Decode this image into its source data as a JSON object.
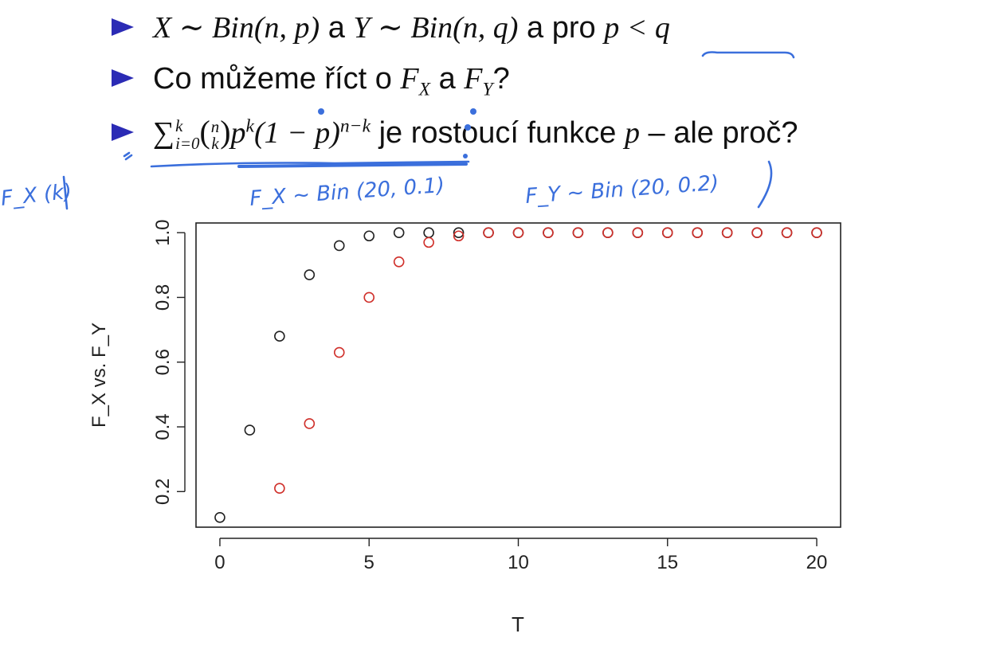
{
  "slide": {
    "bullets": [
      {
        "parts": {
          "math1": "X ∼ Bin(n, p)",
          "and1": " a ",
          "math2": "Y ∼ Bin(n, q)",
          "and2": " a pro ",
          "math3": "p < q"
        }
      },
      {
        "parts": {
          "text1": "Co můžeme říct o ",
          "fx": "F",
          "fx_sub": "X",
          "and": " a ",
          "fy": "F",
          "fy_sub": "Y",
          "q": "?"
        }
      },
      {
        "parts": {
          "sum": "∑",
          "sum_upper": "k",
          "sum_lower": "i=0",
          "binom_top": "n",
          "binom_bottom": "k",
          "p": "p",
          "p_exp": "k",
          "middle": "(1 − p)",
          "middle_exp": "n−k",
          "text": " je rostoucí funkce ",
          "p2": "p",
          "tail": " – ale proč?"
        }
      }
    ]
  },
  "annotations": {
    "left_label": "F_X (k)",
    "under_sum_left": "F_X ~ Bin (20, 0.1)",
    "under_sum_right": "F_Y ~ Bin (20, 0.2)",
    "colors": {
      "ink": "#3b6fdc"
    }
  },
  "chart_data": {
    "type": "scatter",
    "xlabel": "T",
    "ylabel": "F_X vs. F_Y",
    "xlim": [
      -0.8,
      20.8
    ],
    "ylim": [
      0.09,
      1.03
    ],
    "x_ticks": [
      0,
      5,
      10,
      15,
      20
    ],
    "y_ticks": [
      0.2,
      0.4,
      0.6,
      0.8,
      1.0
    ],
    "y_tick_labels": [
      "0.2",
      "0.4",
      "0.6",
      "0.8",
      "1.0"
    ],
    "grid": false,
    "series": [
      {
        "color": "#222222",
        "x": [
          0,
          1,
          2,
          3,
          4,
          5,
          6,
          7,
          8,
          9,
          10,
          11,
          12,
          13,
          14,
          15,
          16,
          17,
          18,
          19,
          20
        ],
        "y": [
          0.12,
          0.39,
          0.68,
          0.87,
          0.96,
          0.99,
          1.0,
          1.0,
          1.0,
          1.0,
          1.0,
          1.0,
          1.0,
          1.0,
          1.0,
          1.0,
          1.0,
          1.0,
          1.0,
          1.0,
          1.0
        ]
      },
      {
        "color": "#d0302b",
        "x": [
          2,
          3,
          4,
          5,
          6,
          7,
          8,
          9,
          10,
          11,
          12,
          13,
          14,
          15,
          16,
          17,
          18,
          19,
          20
        ],
        "y": [
          0.21,
          0.41,
          0.63,
          0.8,
          0.91,
          0.97,
          0.99,
          1.0,
          1.0,
          1.0,
          1.0,
          1.0,
          1.0,
          1.0,
          1.0,
          1.0,
          1.0,
          1.0,
          1.0
        ]
      }
    ]
  }
}
